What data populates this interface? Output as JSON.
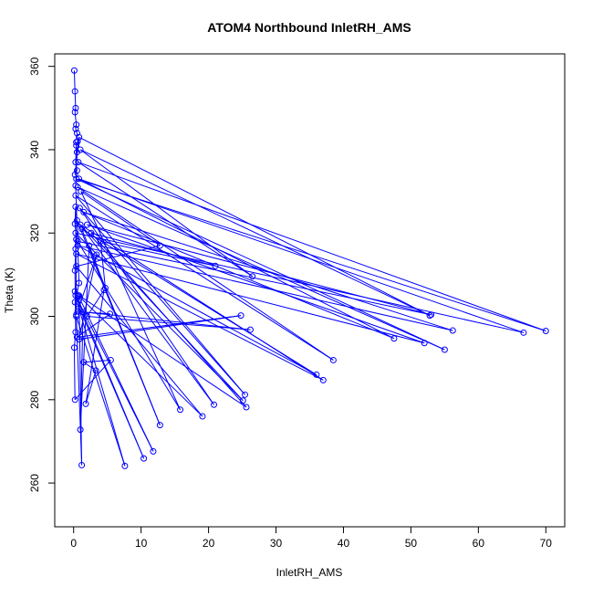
{
  "chart_data": {
    "type": "line",
    "title": "ATOM4 Northbound InletRH_AMS",
    "xlabel": "InletRH_AMS",
    "ylabel": "Theta (K)",
    "xlim": [
      -2.8,
      72.8
    ],
    "ylim": [
      249.5,
      363
    ],
    "xticks": [
      0,
      10,
      20,
      30,
      40,
      50,
      60,
      70
    ],
    "yticks": [
      260,
      280,
      300,
      320,
      340,
      360
    ],
    "grid": false,
    "legend": "none",
    "series": [
      {
        "color": "#0000ff",
        "marker": "open-circle",
        "points": [
          [
            0.1,
            359
          ],
          [
            0.2,
            354
          ],
          [
            0.3,
            350
          ],
          [
            0.2,
            349
          ],
          [
            0.4,
            346
          ],
          [
            0.3,
            345
          ],
          [
            0.5,
            344
          ],
          [
            0.6,
            342
          ],
          [
            0.4,
            341
          ],
          [
            0.3,
            337
          ],
          [
            0.5,
            335
          ],
          [
            0.2,
            334
          ],
          [
            0.8,
            343
          ],
          [
            52.8,
            300.2
          ],
          [
            1.0,
            340
          ],
          [
            26.5,
            309.6
          ],
          [
            0.7,
            337
          ],
          [
            70,
            296.5
          ],
          [
            0.4,
            333
          ],
          [
            55,
            292
          ],
          [
            0.6,
            331
          ],
          [
            38.5,
            289.5
          ],
          [
            0.3,
            329
          ],
          [
            25.4,
            281.2
          ],
          [
            0.9,
            326
          ],
          [
            20.8,
            278.8
          ],
          [
            0.5,
            323
          ],
          [
            12.8,
            273.9
          ],
          [
            1.2,
            321
          ],
          [
            36,
            286
          ],
          [
            0.6,
            317
          ],
          [
            56.2,
            296.6
          ],
          [
            1.5,
            325
          ],
          [
            47.5,
            294.7
          ],
          [
            0.8,
            333
          ],
          [
            66.7,
            296.1
          ],
          [
            0.3,
            320
          ],
          [
            25.1,
            279.8
          ],
          [
            1.0,
            322
          ],
          [
            37,
            284.7
          ],
          [
            0.4,
            315
          ],
          [
            52,
            293.6
          ],
          [
            2.0,
            322
          ],
          [
            53,
            300.4
          ],
          [
            0.6,
            318
          ],
          [
            15.8,
            277.6
          ],
          [
            1.1,
            330
          ],
          [
            12.8,
            317
          ],
          [
            0.4,
            312
          ],
          [
            19.1,
            276
          ],
          [
            0.7,
            305
          ],
          [
            11.8,
            267.6
          ],
          [
            0.3,
            305
          ],
          [
            10.4,
            265.9
          ],
          [
            0.6,
            303
          ],
          [
            7.6,
            264.1
          ],
          [
            0.4,
            300
          ],
          [
            1.2,
            264.3
          ],
          [
            0.8,
            305
          ],
          [
            25.6,
            278.2
          ],
          [
            2.6,
            320
          ],
          [
            21,
            312.1
          ],
          [
            4.0,
            318
          ],
          [
            4.7,
            306.8
          ],
          [
            2.3,
            317
          ],
          [
            1.0,
            272.8
          ],
          [
            1.4,
            301
          ],
          [
            5.4,
            300.6
          ],
          [
            0.5,
            295
          ],
          [
            24.8,
            300.2
          ],
          [
            0.8,
            294.5
          ],
          [
            3.4,
            314.8
          ],
          [
            0.6,
            301.2
          ],
          [
            26.2,
            296.8
          ],
          [
            2.0,
            300
          ],
          [
            4.5,
            306.3
          ],
          [
            1.8,
            279
          ],
          [
            3.3,
            287
          ],
          [
            1.5,
            289
          ],
          [
            5.5,
            289.5
          ],
          [
            0.2,
            280
          ],
          [
            0.1,
            292.5
          ],
          [
            0.3,
            296.2
          ],
          [
            0.2,
            311
          ],
          [
            0.3,
            316.2
          ],
          [
            0.4,
            318.5
          ],
          [
            0.2,
            322.2
          ],
          [
            0.3,
            326.3
          ],
          [
            0.4,
            300.4
          ],
          [
            0.2,
            306
          ],
          [
            0.6,
            304.8
          ],
          [
            0.2,
            303.4
          ],
          [
            0.8,
            308
          ],
          [
            0.3,
            331.4
          ],
          [
            0.5,
            339.4
          ],
          [
            0.4,
            341.8
          ]
        ]
      }
    ]
  }
}
